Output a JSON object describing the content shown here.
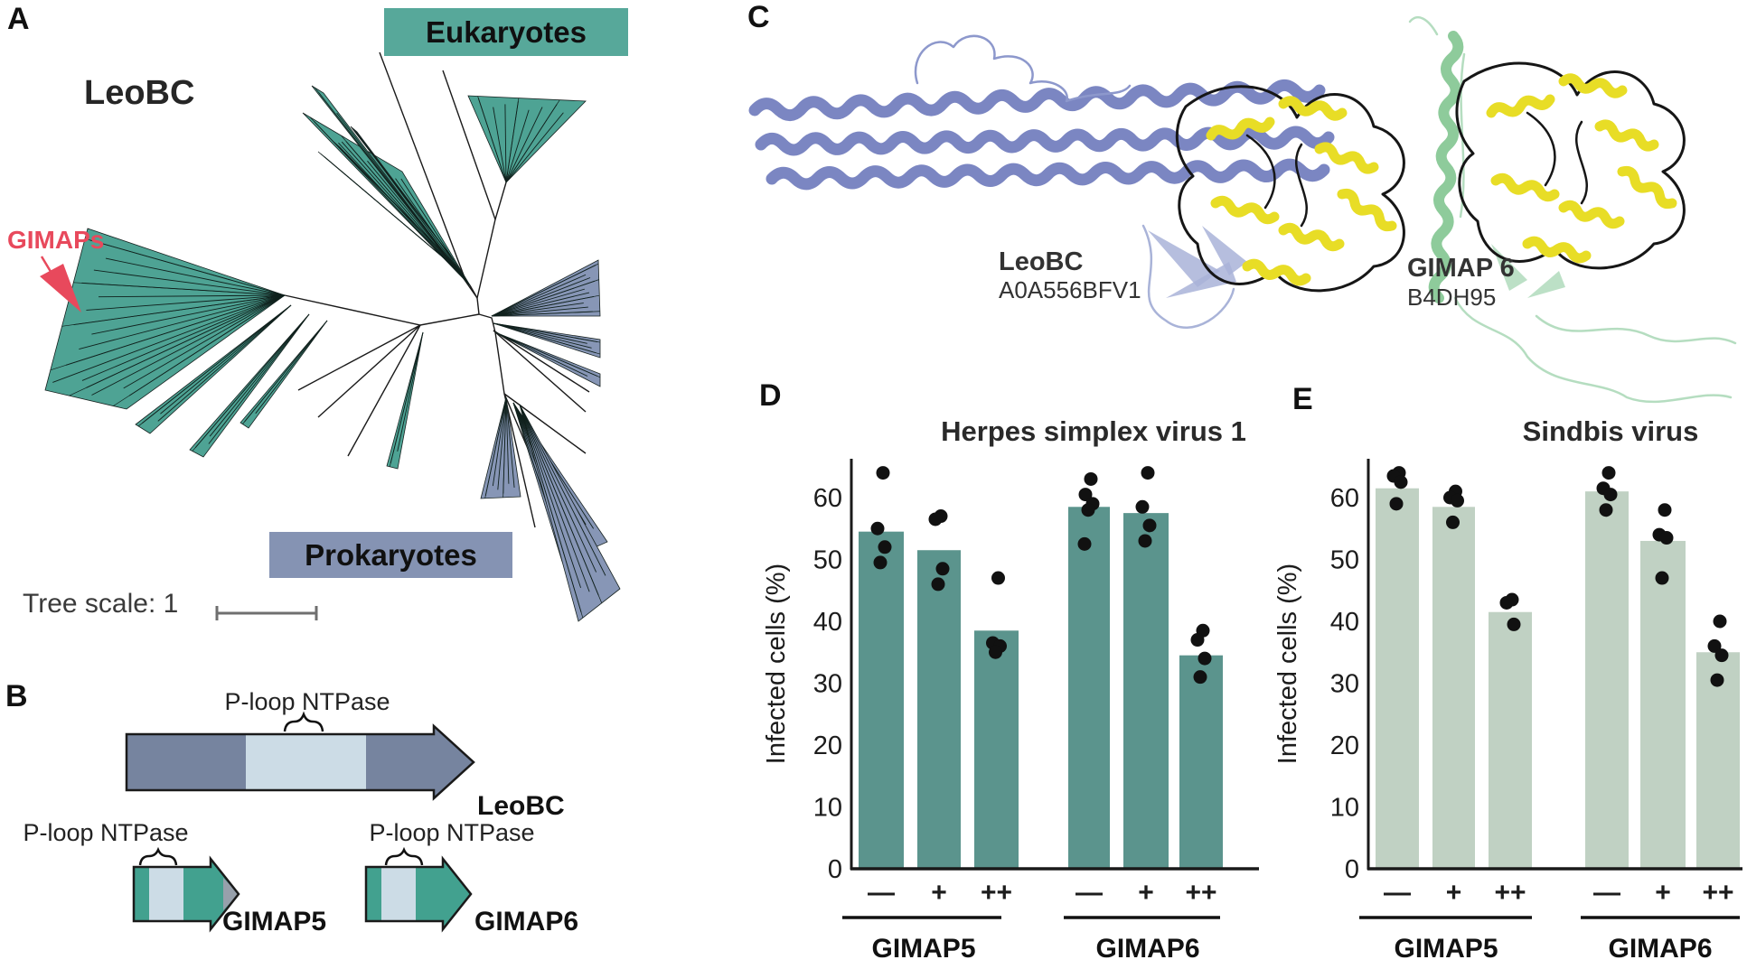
{
  "figure": {
    "panel_a_label": "A",
    "panel_b_label": "B",
    "panel_c_label": "C",
    "panel_d_label": "D",
    "panel_e_label": "E"
  },
  "panel_a": {
    "tree_title": "LeoBC",
    "gimaps_label": "GIMAPs",
    "eukaryotes_label": "Eukaryotes",
    "prokaryotes_label": "Prokaryotes",
    "tree_scale_label": "Tree scale: 1",
    "colors": {
      "eukaryote_teal": "#4ea394",
      "eukaryote_box": "#57a89a",
      "prokaryote_blue": "#8796b6",
      "prokaryote_box": "#8593b3",
      "navy_clade": "#2d3950",
      "gimaps_red": "#e8495c",
      "branch": "#1a1a1a"
    }
  },
  "panel_b": {
    "leobc": {
      "domain_label": "P-loop NTPase",
      "name": "LeoBC"
    },
    "gimap5": {
      "domain_label": "P-loop NTPase",
      "name": "GIMAP5"
    },
    "gimap6": {
      "domain_label": "P-loop NTPase",
      "name": "GIMAP6"
    },
    "colors": {
      "body_blue": "#76849f",
      "ploop_light": "#ccdce6",
      "gimap_teal": "#42a18f",
      "gray_tip": "#97a0ab",
      "outline": "#1a1a1a"
    }
  },
  "panel_c": {
    "leobc": {
      "name": "LeoBC",
      "accession": "A0A556BFV1"
    },
    "gimap6": {
      "name": "GIMAP 6",
      "accession": "B4DH95"
    },
    "colors": {
      "leobc_slate": "#7b86c2",
      "leobc_loop": "#8d98cc",
      "leobc_beta": "#a9b3d8",
      "gimap6_green": "#8ecb9b",
      "gimap6_loop": "#b5ddc0",
      "ploop_yellow": "#e8dd26",
      "loop_black": "#161616"
    }
  },
  "chart_data": [
    {
      "id": "hsv1",
      "type": "bar",
      "title": "Herpes simplex virus 1",
      "ylabel": "Infected cells (%)",
      "ylim": [
        0,
        66
      ],
      "yticks": [
        0,
        10,
        20,
        30,
        40,
        50,
        60
      ],
      "grid": false,
      "bar_color": "#5b948d",
      "dot_color": "#111111",
      "groups": [
        "GIMAP5",
        "GIMAP6"
      ],
      "categories": [
        "—",
        "+",
        "++",
        "—",
        "+",
        "++"
      ],
      "values": [
        54.5,
        51.5,
        38.5,
        58.5,
        57.5,
        34.5
      ],
      "points": [
        [
          64,
          55,
          52,
          49.5
        ],
        [
          57,
          56.5,
          48.5,
          46
        ],
        [
          47,
          36.5,
          36,
          35
        ],
        [
          63,
          60.5,
          59,
          58,
          52.5
        ],
        [
          64,
          58.5,
          55.5,
          53
        ],
        [
          38.5,
          37,
          34,
          31
        ]
      ]
    },
    {
      "id": "sindbis",
      "type": "bar",
      "title": "Sindbis virus",
      "ylabel": "Infected cells (%)",
      "ylim": [
        0,
        66
      ],
      "yticks": [
        0,
        10,
        20,
        30,
        40,
        50,
        60
      ],
      "grid": false,
      "bar_color": "#c0d1c3",
      "dot_color": "#111111",
      "groups": [
        "GIMAP5",
        "GIMAP6"
      ],
      "categories": [
        "—",
        "+",
        "++",
        "—",
        "+",
        "++"
      ],
      "values": [
        61.5,
        58.5,
        41.5,
        61,
        53,
        35
      ],
      "points": [
        [
          64,
          63.5,
          62.5,
          59
        ],
        [
          61,
          60,
          59.5,
          56
        ],
        [
          43.5,
          43,
          39.5
        ],
        [
          64,
          61.5,
          60.5,
          58
        ],
        [
          58,
          54,
          53.5,
          47
        ],
        [
          40,
          36,
          34.5,
          30.5
        ]
      ]
    }
  ]
}
